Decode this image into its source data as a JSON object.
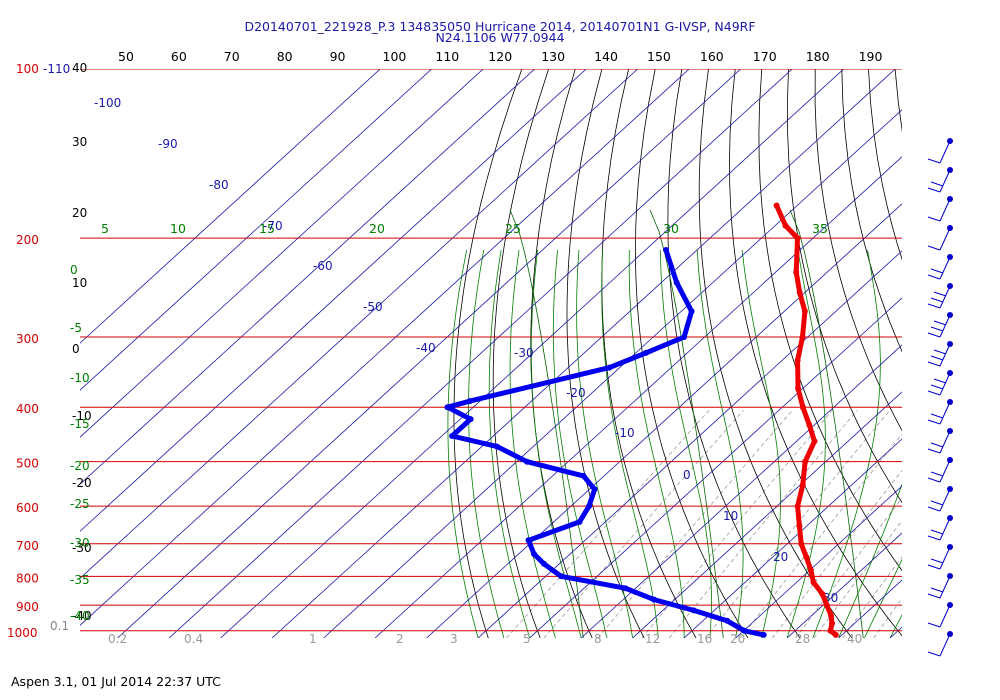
{
  "header": {
    "line1": "D20140701_221928_P.3 134835050 Hurricane 2014, 20140701N1 G-IVSP, N49RF",
    "line2": "N24.1106 W77.0944"
  },
  "footer": {
    "text": "Aspen 3.1, 01 Jul 2014  22:37 UTC"
  },
  "colors": {
    "pressure_lines": "#d40000",
    "isotherms": "#1a1aa6",
    "dry_adiabats": "#000000",
    "moist_adiabats": "#008000",
    "mixing_ratio": "#9a9a9a",
    "temperature_trace": "#ee0000",
    "dewpoint_trace": "#0000ee",
    "barbs": "#0000cc"
  },
  "chart_data": {
    "type": "skew-t",
    "pressure_levels": [
      "100-110",
      "200",
      "300",
      "400",
      "500",
      "600",
      "700",
      "800",
      "900",
      "1000"
    ],
    "top_axis_labels": [
      "50",
      "60",
      "70",
      "80",
      "90",
      "100",
      "110",
      "120",
      "130",
      "140",
      "150",
      "160",
      "170",
      "180",
      "190"
    ],
    "left_axis_labels": [
      "40",
      "30",
      "20",
      "10",
      "0",
      "-10",
      "-20",
      "-30",
      "-40",
      "0.1"
    ],
    "isotherm_labels": [
      "-100",
      "-90",
      "-80",
      "-70",
      "-60",
      "-50",
      "-40",
      "-30",
      "-20",
      "-10",
      "0",
      "10",
      "20",
      "30"
    ],
    "theta_e_labels": [
      "5",
      "10",
      "15",
      "20",
      "25",
      "30",
      "35"
    ],
    "moist_left_labels": [
      "0",
      "-5",
      "-10",
      "-15",
      "-20",
      "-25",
      "-30",
      "-35",
      "-40"
    ],
    "mixing_ratio_labels": [
      "0.2",
      "0.4",
      "1",
      "2",
      "3",
      "5",
      "8",
      "12",
      "16",
      "20",
      "28",
      "40"
    ],
    "temperature": {
      "pressure": [
        175,
        190,
        200,
        230,
        250,
        270,
        300,
        330,
        370,
        400,
        430,
        460,
        500,
        550,
        600,
        650,
        700,
        740,
        780,
        820,
        860,
        900,
        940,
        970,
        1000,
        1017
      ],
      "temp_c": [
        -74,
        -68,
        -63,
        -56,
        -51,
        -46,
        -41,
        -37,
        -31,
        -26,
        -21,
        -16.5,
        -14,
        -9.5,
        -6,
        -1.5,
        2.7,
        6.6,
        10.2,
        13.3,
        17.5,
        20.7,
        23.8,
        25.6,
        26.9,
        28.8
      ]
    },
    "dewpoint": {
      "pressure": [
        210,
        240,
        270,
        300,
        320,
        340,
        390,
        400,
        420,
        450,
        470,
        500,
        530,
        560,
        600,
        640,
        690,
        730,
        760,
        800,
        840,
        880,
        920,
        960,
        1000,
        1017
      ],
      "dewpt_c": [
        -86,
        -77,
        -68,
        -64,
        -68,
        -72,
        -92,
        -95,
        -88,
        -88,
        -77,
        -68,
        -54,
        -49,
        -46.5,
        -45,
        -51,
        -47,
        -43,
        -37,
        -22,
        -14,
        -4,
        4.7,
        10.2,
        14.8
      ]
    },
    "wind_barbs": {
      "pressure": [
        150,
        200,
        250,
        300,
        350,
        400,
        450,
        500,
        550,
        600,
        650,
        700,
        750,
        800,
        850,
        900,
        950,
        1000
      ],
      "speed_kt": [
        10,
        15,
        5,
        10,
        20,
        25,
        25,
        25,
        25,
        20,
        20,
        20,
        20,
        20,
        15,
        15,
        10,
        10
      ]
    },
    "grid": true
  }
}
